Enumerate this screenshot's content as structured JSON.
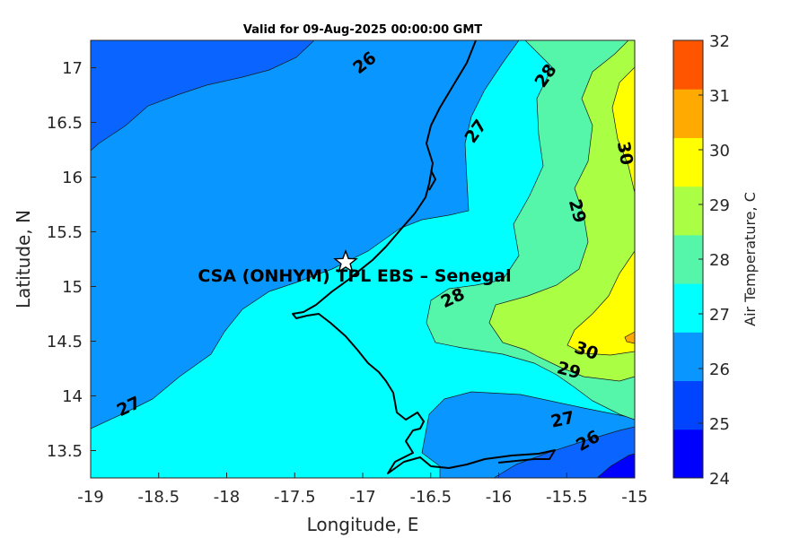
{
  "title": "Valid for 09-Aug-2025 00:00:00 GMT",
  "xlabel": "Longitude, E",
  "ylabel": "Latitude, N",
  "colorbar_label": "Air Temperature, C",
  "station_label": "CSA (ONHYM) TPL EBS  – Senegal",
  "station_marker": "star-icon",
  "chart_data": {
    "type": "heatmap",
    "title": "Valid for 09-Aug-2025 00:00:00 GMT",
    "xlabel": "Longitude, E",
    "ylabel": "Latitude, N",
    "xlim": [
      -19,
      -15
    ],
    "ylim": [
      13.25,
      17.25
    ],
    "x_ticks": [
      "-19",
      "-18.5",
      "-18",
      "-17.5",
      "-17",
      "-16.5",
      "-16",
      "-15.5",
      "-15"
    ],
    "y_ticks": [
      "13.5",
      "14",
      "14.5",
      "15",
      "15.5",
      "16",
      "16.5",
      "17"
    ],
    "colorbar": {
      "label": "Air Temperature, C",
      "range": [
        24,
        32
      ],
      "ticks": [
        "24",
        "25",
        "26",
        "27",
        "28",
        "29",
        "30",
        "31",
        "32"
      ],
      "colors": [
        "#0000ff",
        "#0044ff",
        "#0a96ff",
        "#00ffff",
        "#55f5aa",
        "#aaff44",
        "#ffff00",
        "#ffaa00",
        "#ff5500"
      ]
    },
    "contour_labels": [
      {
        "value": "26",
        "lon": -17.02,
        "lat": 17.0
      },
      {
        "value": "27",
        "lon": -16.18,
        "lat": 16.42
      },
      {
        "value": "28",
        "lon": -15.6,
        "lat": 16.95
      },
      {
        "value": "30",
        "lon": -15.05,
        "lat": 15.92
      },
      {
        "value": "29",
        "lon": -15.48,
        "lat": 15.7
      },
      {
        "value": "28",
        "lon": -16.35,
        "lat": 14.9
      },
      {
        "value": "30",
        "lon": -15.45,
        "lat": 14.45
      },
      {
        "value": "29",
        "lon": -15.52,
        "lat": 14.22
      },
      {
        "value": "27",
        "lon": -18.78,
        "lat": 13.93
      },
      {
        "value": "27",
        "lon": -15.58,
        "lat": 13.8
      },
      {
        "value": "26",
        "lon": -15.32,
        "lat": 13.57
      }
    ],
    "station": {
      "name": "CSA (ONHYM) TPL EBS  – Senegal",
      "lon": -17.13,
      "lat": 15.23
    }
  }
}
